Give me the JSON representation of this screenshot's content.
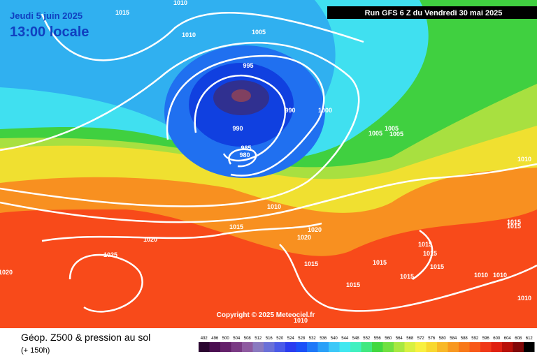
{
  "header": {
    "date": "Jeudi 5 juin 2025",
    "time": "13:00 locale",
    "run": "Run GFS 6 Z du Vendredi 30 mai 2025"
  },
  "isobar_labels": [
    "1015",
    "1010",
    "1010",
    "1005",
    "995",
    "990",
    "1000",
    "990",
    "985",
    "980",
    "1005",
    "1005",
    "1005",
    "1010",
    "1010",
    "1015",
    "1020",
    "1020",
    "1020",
    "1025",
    "1020",
    "1015",
    "1015",
    "1015",
    "1015",
    "1015",
    "1015",
    "1015",
    "1015",
    "1010",
    "1010",
    "1015",
    "1010",
    "1010"
  ],
  "copyright": "Copyright © 2025 Meteociel.fr",
  "legend": {
    "title": "Géop. Z500 & pression au sol",
    "subtitle": "(+ 150h)",
    "scale": [
      492,
      496,
      500,
      504,
      508,
      512,
      516,
      520,
      524,
      528,
      532,
      536,
      540,
      544,
      548,
      552,
      556,
      560,
      564,
      568,
      572,
      576,
      580,
      584,
      588,
      592,
      596,
      600,
      604,
      608,
      612
    ],
    "colors": [
      "#2a0630",
      "#4a0e50",
      "#64206a",
      "#7a3a84",
      "#8e5aa0",
      "#8a7ac0",
      "#6a70d8",
      "#4a5ae8",
      "#2a3cf0",
      "#1a50f8",
      "#1e78f8",
      "#2aa0f8",
      "#3cc8f8",
      "#40e8f0",
      "#40f0c0",
      "#40e880",
      "#40d840",
      "#70e040",
      "#a8e840",
      "#d8f040",
      "#f8f040",
      "#f8d830",
      "#f8b828",
      "#f89820",
      "#f87818",
      "#f85818",
      "#f03818",
      "#e02010",
      "#b81008",
      "#800808",
      "#000000"
    ]
  }
}
